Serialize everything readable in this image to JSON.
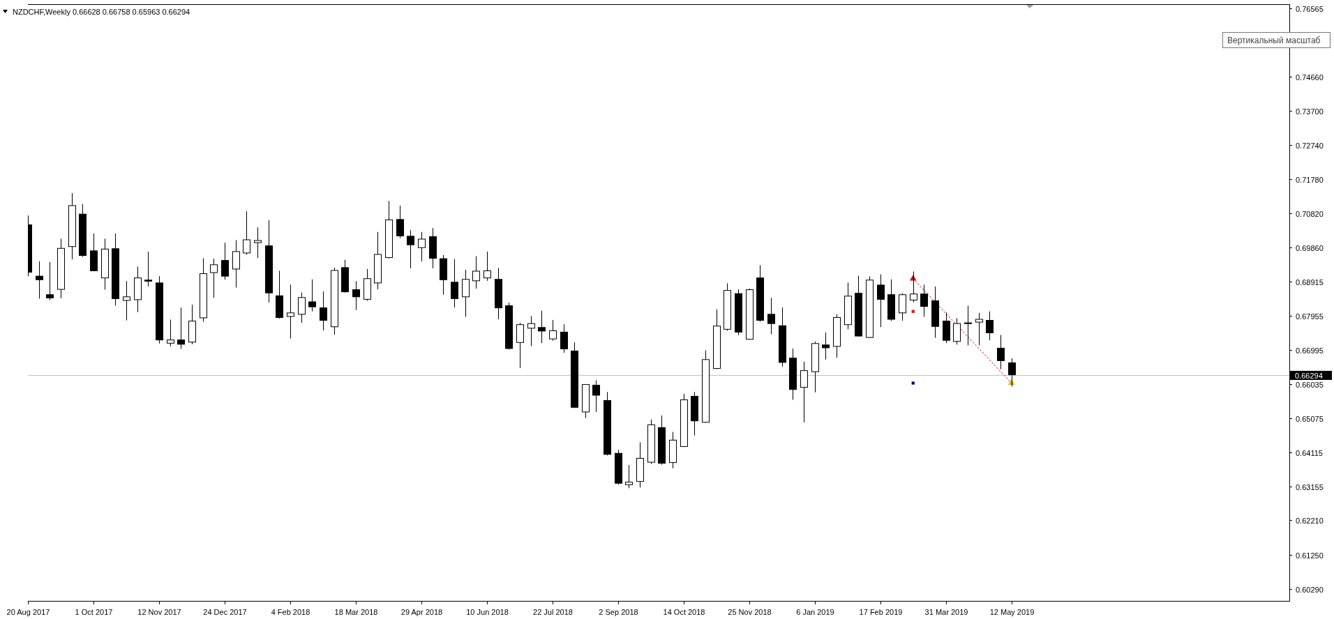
{
  "chart_data": {
    "type": "candlestick",
    "title": "NZDCHF,Weekly 0.66628 0.66758 0.65963 0.66294",
    "x": [
      "2017-08-20",
      "2017-08-27",
      "2017-09-03",
      "2017-09-10",
      "2017-09-17",
      "2017-09-24",
      "2017-10-01",
      "2017-10-08",
      "2017-10-15",
      "2017-10-22",
      "2017-10-29",
      "2017-11-05",
      "2017-11-12",
      "2017-11-19",
      "2017-11-26",
      "2017-12-03",
      "2017-12-10",
      "2017-12-17",
      "2017-12-24",
      "2017-12-31",
      "2018-01-07",
      "2018-01-14",
      "2018-01-21",
      "2018-01-28",
      "2018-02-04",
      "2018-02-11",
      "2018-02-18",
      "2018-02-25",
      "2018-03-04",
      "2018-03-11",
      "2018-03-18",
      "2018-03-25",
      "2018-04-01",
      "2018-04-08",
      "2018-04-15",
      "2018-04-22",
      "2018-04-29",
      "2018-05-06",
      "2018-05-13",
      "2018-05-20",
      "2018-05-27",
      "2018-06-03",
      "2018-06-10",
      "2018-06-17",
      "2018-06-24",
      "2018-07-01",
      "2018-07-08",
      "2018-07-15",
      "2018-07-22",
      "2018-07-29",
      "2018-08-05",
      "2018-08-12",
      "2018-08-19",
      "2018-08-26",
      "2018-09-02",
      "2018-09-09",
      "2018-09-16",
      "2018-09-23",
      "2018-09-30",
      "2018-10-07",
      "2018-10-14",
      "2018-10-21",
      "2018-10-28",
      "2018-11-04",
      "2018-11-11",
      "2018-11-18",
      "2018-11-25",
      "2018-12-02",
      "2018-12-09",
      "2018-12-16",
      "2018-12-23",
      "2018-12-30",
      "2019-01-06",
      "2019-01-13",
      "2019-01-20",
      "2019-01-27",
      "2019-02-03",
      "2019-02-10",
      "2019-02-17",
      "2019-02-24",
      "2019-03-03",
      "2019-03-10",
      "2019-03-17",
      "2019-03-24",
      "2019-03-31",
      "2019-04-07",
      "2019-04-14",
      "2019-04-21",
      "2019-04-28",
      "2019-05-05",
      "2019-05-12"
    ],
    "ohlc": [
      [
        0.705,
        0.7076,
        0.6906,
        0.6917
      ],
      [
        0.6906,
        0.6948,
        0.6843,
        0.6896
      ],
      [
        0.6854,
        0.6946,
        0.6839,
        0.6845
      ],
      [
        0.6869,
        0.7011,
        0.6844,
        0.6984
      ],
      [
        0.6989,
        0.7139,
        0.6953,
        0.7104
      ],
      [
        0.708,
        0.7108,
        0.696,
        0.6964
      ],
      [
        0.6977,
        0.7026,
        0.692,
        0.6921
      ],
      [
        0.6901,
        0.7011,
        0.6868,
        0.6982
      ],
      [
        0.6983,
        0.7026,
        0.6823,
        0.6843
      ],
      [
        0.6838,
        0.6892,
        0.6782,
        0.6848
      ],
      [
        0.684,
        0.6933,
        0.6805,
        0.6901
      ],
      [
        0.6895,
        0.6975,
        0.6877,
        0.6892
      ],
      [
        0.6887,
        0.6906,
        0.6717,
        0.6727
      ],
      [
        0.6718,
        0.6784,
        0.6709,
        0.6727
      ],
      [
        0.6727,
        0.6818,
        0.6702,
        0.6715
      ],
      [
        0.6721,
        0.6826,
        0.6715,
        0.678
      ],
      [
        0.6789,
        0.6956,
        0.6778,
        0.6913
      ],
      [
        0.6916,
        0.6955,
        0.6845,
        0.6938
      ],
      [
        0.695,
        0.7,
        0.6896,
        0.6906
      ],
      [
        0.6926,
        0.7007,
        0.6874,
        0.6975
      ],
      [
        0.6971,
        0.7088,
        0.6966,
        0.7008
      ],
      [
        0.7,
        0.7043,
        0.6957,
        0.7006
      ],
      [
        0.6991,
        0.7063,
        0.6832,
        0.6859
      ],
      [
        0.6851,
        0.6921,
        0.6787,
        0.679
      ],
      [
        0.6793,
        0.6882,
        0.6731,
        0.6803
      ],
      [
        0.6799,
        0.686,
        0.6775,
        0.6846
      ],
      [
        0.6834,
        0.6897,
        0.6807,
        0.682
      ],
      [
        0.6817,
        0.6863,
        0.6754,
        0.6782
      ],
      [
        0.6764,
        0.693,
        0.6742,
        0.6922
      ],
      [
        0.693,
        0.6952,
        0.686,
        0.6862
      ],
      [
        0.6868,
        0.6892,
        0.6811,
        0.6848
      ],
      [
        0.6841,
        0.6926,
        0.6837,
        0.6899
      ],
      [
        0.6887,
        0.703,
        0.6869,
        0.6967
      ],
      [
        0.6958,
        0.7117,
        0.6956,
        0.7064
      ],
      [
        0.7065,
        0.7104,
        0.7013,
        0.7019
      ],
      [
        0.7018,
        0.7035,
        0.6928,
        0.6994
      ],
      [
        0.6986,
        0.703,
        0.6947,
        0.701
      ],
      [
        0.7017,
        0.7041,
        0.6928,
        0.6956
      ],
      [
        0.6955,
        0.6965,
        0.6854,
        0.6896
      ],
      [
        0.6889,
        0.6954,
        0.6818,
        0.6843
      ],
      [
        0.6848,
        0.6924,
        0.6792,
        0.6897
      ],
      [
        0.6893,
        0.6962,
        0.6871,
        0.692
      ],
      [
        0.6901,
        0.6975,
        0.6893,
        0.6921
      ],
      [
        0.6897,
        0.6929,
        0.6785,
        0.6817
      ],
      [
        0.6823,
        0.6832,
        0.67,
        0.6703
      ],
      [
        0.672,
        0.6775,
        0.6648,
        0.677
      ],
      [
        0.676,
        0.6794,
        0.671,
        0.6773
      ],
      [
        0.6762,
        0.6809,
        0.6718,
        0.6752
      ],
      [
        0.673,
        0.6783,
        0.6725,
        0.6753
      ],
      [
        0.6749,
        0.6771,
        0.6691,
        0.6702
      ],
      [
        0.6696,
        0.672,
        0.6536,
        0.6538
      ],
      [
        0.6525,
        0.6602,
        0.6508,
        0.6602
      ],
      [
        0.66,
        0.6614,
        0.6525,
        0.6572
      ],
      [
        0.6557,
        0.6581,
        0.6403,
        0.6406
      ],
      [
        0.6409,
        0.6419,
        0.6321,
        0.6325
      ],
      [
        0.6321,
        0.6376,
        0.6311,
        0.6328
      ],
      [
        0.633,
        0.644,
        0.6313,
        0.6395
      ],
      [
        0.6384,
        0.6504,
        0.6379,
        0.6489
      ],
      [
        0.6481,
        0.6515,
        0.6377,
        0.6381
      ],
      [
        0.6383,
        0.6469,
        0.6367,
        0.6446
      ],
      [
        0.6428,
        0.6576,
        0.6427,
        0.6559
      ],
      [
        0.6569,
        0.6581,
        0.6459,
        0.65
      ],
      [
        0.6496,
        0.6698,
        0.6495,
        0.6672
      ],
      [
        0.6647,
        0.6813,
        0.6645,
        0.6766
      ],
      [
        0.6757,
        0.6886,
        0.6753,
        0.6866
      ],
      [
        0.6857,
        0.6869,
        0.674,
        0.6749
      ],
      [
        0.6729,
        0.6871,
        0.6728,
        0.6868
      ],
      [
        0.6901,
        0.6937,
        0.6778,
        0.6782
      ],
      [
        0.6799,
        0.6845,
        0.6743,
        0.6773
      ],
      [
        0.6767,
        0.6818,
        0.6652,
        0.6664
      ],
      [
        0.6676,
        0.6703,
        0.6559,
        0.6588
      ],
      [
        0.6594,
        0.6666,
        0.6496,
        0.6641
      ],
      [
        0.6638,
        0.6723,
        0.658,
        0.6717
      ],
      [
        0.6713,
        0.6748,
        0.6672,
        0.6705
      ],
      [
        0.6709,
        0.6799,
        0.6677,
        0.679
      ],
      [
        0.677,
        0.6888,
        0.6757,
        0.685
      ],
      [
        0.6858,
        0.6907,
        0.6737,
        0.6738
      ],
      [
        0.6734,
        0.6905,
        0.6733,
        0.6895
      ],
      [
        0.6881,
        0.6911,
        0.6763,
        0.6841
      ],
      [
        0.6854,
        0.6897,
        0.678,
        0.6785
      ],
      [
        0.6803,
        0.6858,
        0.6781,
        0.6854
      ],
      [
        0.6839,
        0.6919,
        0.6833,
        0.6856
      ],
      [
        0.6856,
        0.6882,
        0.6792,
        0.6821
      ],
      [
        0.6837,
        0.6877,
        0.6733,
        0.6765
      ],
      [
        0.678,
        0.6804,
        0.6718,
        0.6726
      ],
      [
        0.6723,
        0.6788,
        0.6714,
        0.6773
      ],
      [
        0.6775,
        0.6823,
        0.6712,
        0.6773
      ],
      [
        0.6777,
        0.6803,
        0.6712,
        0.6785
      ],
      [
        0.6782,
        0.6807,
        0.6726,
        0.6747
      ],
      [
        0.6704,
        0.6741,
        0.6645,
        0.6669
      ],
      [
        0.66628,
        0.66758,
        0.65963,
        0.66294
      ]
    ],
    "color": "#000000",
    "colors": [
      "#000000",
      "#000000",
      "#000000",
      "#ffffff",
      "#ffffff",
      "#000000",
      "#000000",
      "#ffffff",
      "#000000",
      "#ffffff",
      "#ffffff",
      "#000000",
      "#000000",
      "#ffffff",
      "#000000",
      "#ffffff",
      "#ffffff",
      "#ffffff",
      "#000000",
      "#ffffff",
      "#ffffff",
      "#ffffff",
      "#000000",
      "#000000",
      "#ffffff",
      "#ffffff",
      "#000000",
      "#000000",
      "#ffffff",
      "#000000",
      "#000000",
      "#ffffff",
      "#ffffff",
      "#ffffff",
      "#000000",
      "#000000",
      "#ffffff",
      "#000000",
      "#000000",
      "#000000",
      "#ffffff",
      "#ffffff",
      "#ffffff",
      "#000000",
      "#000000",
      "#ffffff",
      "#ffffff",
      "#000000",
      "#ffffff",
      "#000000",
      "#000000",
      "#ffffff",
      "#000000",
      "#000000",
      "#000000",
      "#ffffff",
      "#ffffff",
      "#ffffff",
      "#000000",
      "#ffffff",
      "#ffffff",
      "#000000",
      "#ffffff",
      "#ffffff",
      "#ffffff",
      "#000000",
      "#ffffff",
      "#000000",
      "#000000",
      "#000000",
      "#000000",
      "#ffffff",
      "#ffffff",
      "#000000",
      "#ffffff",
      "#ffffff",
      "#000000",
      "#ffffff",
      "#000000",
      "#000000",
      "#ffffff",
      "#ffffff",
      "#000000",
      "#000000",
      "#000000",
      "#ffffff",
      "#000000",
      "#ffffff",
      "#000000",
      "#000000",
      "#000000"
    ],
    "series": [
      {
        "type": "line",
        "x": [
          "2019-03-10",
          "2019-05-12"
        ],
        "values": [
          0.6899,
          0.6606
        ],
        "color": "#e00000",
        "line_style": "dotted"
      },
      {
        "type": "scatter",
        "x": [
          "2019-03-10"
        ],
        "values": [
          0.6899
        ],
        "color": "#e00000",
        "marker": "triangle"
      },
      {
        "type": "scatter",
        "x": [
          "2019-05-12"
        ],
        "values": [
          0.6606
        ],
        "color": "#d4b800",
        "marker": "triangle"
      },
      {
        "type": "scatter",
        "x": [
          "2019-03-10"
        ],
        "values": [
          0.6807
        ],
        "color": "#ff0000",
        "marker": "square"
      },
      {
        "type": "scatter",
        "x": [
          "2019-03-10"
        ],
        "values": [
          0.6606
        ],
        "color": "#000080",
        "marker": "square"
      }
    ],
    "xlim": [
      "2017-08-20",
      "2019-11-06"
    ],
    "xticks": [
      {
        "value": "2017-08-20",
        "label": "20 Aug 2017"
      },
      {
        "value": "2017-10-01",
        "label": "1 Oct 2017"
      },
      {
        "value": "2017-11-12",
        "label": "12 Nov 2017"
      },
      {
        "value": "2017-12-24",
        "label": "24 Dec 2017"
      },
      {
        "value": "2018-02-04",
        "label": "4 Feb 2018"
      },
      {
        "value": "2018-03-18",
        "label": "18 Mar 2018"
      },
      {
        "value": "2018-04-29",
        "label": "29 Apr 2018"
      },
      {
        "value": "2018-06-10",
        "label": "10 Jun 2018"
      },
      {
        "value": "2018-07-22",
        "label": "22 Jul 2018"
      },
      {
        "value": "2018-09-02",
        "label": "2 Sep 2018"
      },
      {
        "value": "2018-10-14",
        "label": "14 Oct 2018"
      },
      {
        "value": "2018-11-25",
        "label": "25 Nov 2018"
      },
      {
        "value": "2019-01-06",
        "label": "6 Jan 2019"
      },
      {
        "value": "2019-02-17",
        "label": "17 Feb 2019"
      },
      {
        "value": "2019-03-31",
        "label": "31 Mar 2019"
      },
      {
        "value": "2019-05-12",
        "label": "12 May 2019"
      }
    ],
    "ylim": [
      0.5995,
      0.7669
    ],
    "yticks": [
      0.76565,
      {
        "value": 0.7466,
        "label": "0.74660"
      },
      {
        "value": 0.737,
        "label": "0.73700"
      },
      {
        "value": 0.7274,
        "label": "0.72740"
      },
      {
        "value": 0.7178,
        "label": "0.71780"
      },
      {
        "value": 0.7082,
        "label": "0.70820"
      },
      {
        "value": 0.6986,
        "label": "0.69860"
      },
      0.68915,
      0.67955,
      0.66995,
      0.66035,
      0.65075,
      0.64115,
      0.63155,
      {
        "value": 0.6221,
        "label": "0.62210"
      },
      {
        "value": 0.6125,
        "label": "0.61250"
      },
      {
        "value": 0.6029,
        "label": "0.60290"
      }
    ],
    "ref_lines": [
      {
        "axis": "y",
        "value": 0.66294,
        "label": "0.66294",
        "color": "#c0c0c0"
      }
    ],
    "annotations": [
      "Вертикальный масштаб"
    ]
  }
}
